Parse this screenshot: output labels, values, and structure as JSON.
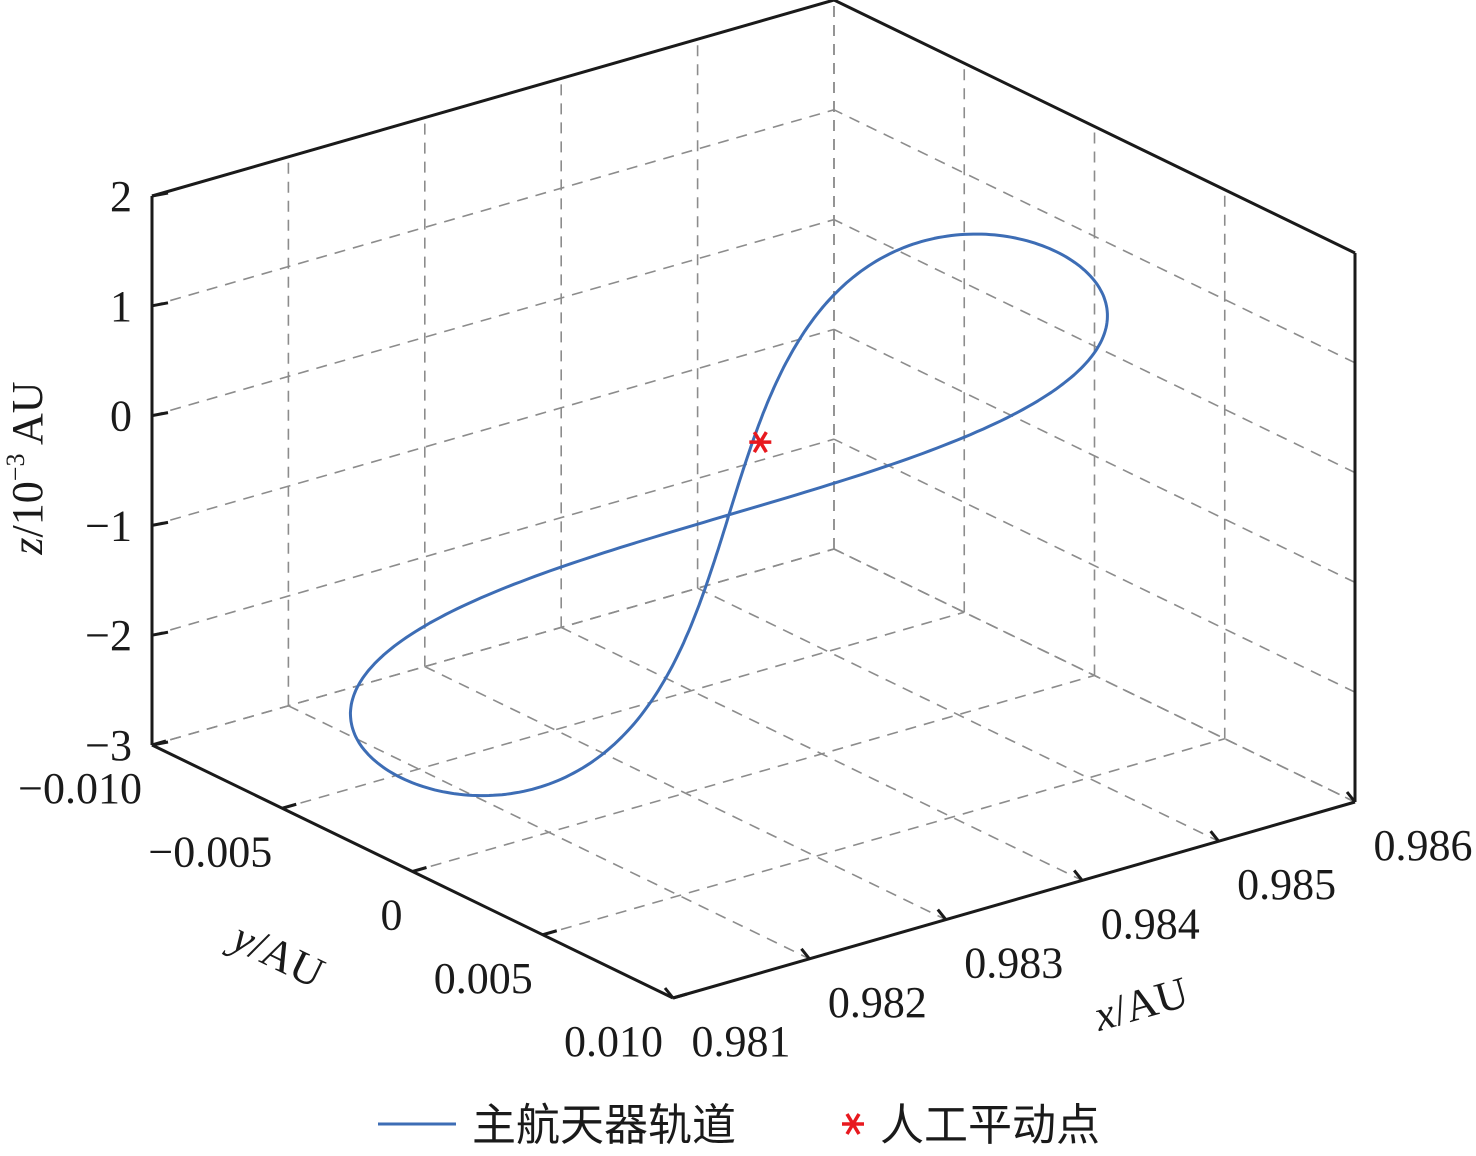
{
  "chart_data": {
    "type": "line",
    "view": "3d",
    "grid": true,
    "legend_position": "bottom",
    "xlabel": {
      "var": "x",
      "unit": "/AU"
    },
    "ylabel": {
      "var": "y",
      "unit": "/AU"
    },
    "zlabel": {
      "var": "z",
      "unit": "/10",
      "exp": "−3",
      "suffix": " AU"
    },
    "xlim": [
      0.981,
      0.986
    ],
    "ylim": [
      -0.01,
      0.01
    ],
    "zlim": [
      -3,
      2
    ],
    "x_ticks": [
      "0.981",
      "0.982",
      "0.983",
      "0.984",
      "0.985",
      "0.986"
    ],
    "y_ticks": [
      "0.010",
      "0.005",
      "0",
      "−0.005",
      "−0.010"
    ],
    "z_ticks": [
      "2",
      "1",
      "0",
      "−1",
      "−2",
      "−3"
    ],
    "series": [
      {
        "name": "主航天器轨道",
        "color": "#3d6db5",
        "marker": "none",
        "lissajous": {
          "x0": 0.98332,
          "ax": 0.0024,
          "y0": 0.0,
          "ay": 0.0041,
          "z0": -0.58,
          "az": 1.54
        }
      },
      {
        "name": "人工平动点",
        "color": "#e8191f",
        "marker": "asterisk",
        "points": [
          {
            "x": 0.98355,
            "y": 0.0,
            "z": 0.0
          }
        ]
      }
    ]
  }
}
